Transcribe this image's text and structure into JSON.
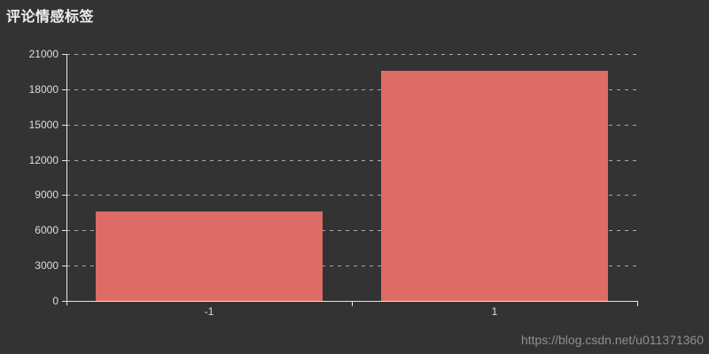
{
  "title": "评论情感标签",
  "watermark": {
    "url": "https://blog.csdn.net/u011371360"
  },
  "colors": {
    "background": "#333333",
    "bar": "#dd6b66",
    "axis_line": "#e6e6e6",
    "grid_line": "#aaaaaa",
    "tick_label": "#dddddd",
    "title_text": "#eeeeee",
    "watermark_text": "#8f8f8f"
  },
  "chart_data": {
    "type": "bar",
    "title": "评论情感标签",
    "categories": [
      "-1",
      "1"
    ],
    "values": [
      7600,
      19600
    ],
    "xlabel": "",
    "ylabel": "",
    "ylim": [
      0,
      21000
    ],
    "yticks": [
      0,
      3000,
      6000,
      9000,
      12000,
      15000,
      18000,
      21000
    ],
    "grid": "dashed-horizontal",
    "legend": "none",
    "bar_width_fraction": 0.795,
    "theme": "dark"
  }
}
